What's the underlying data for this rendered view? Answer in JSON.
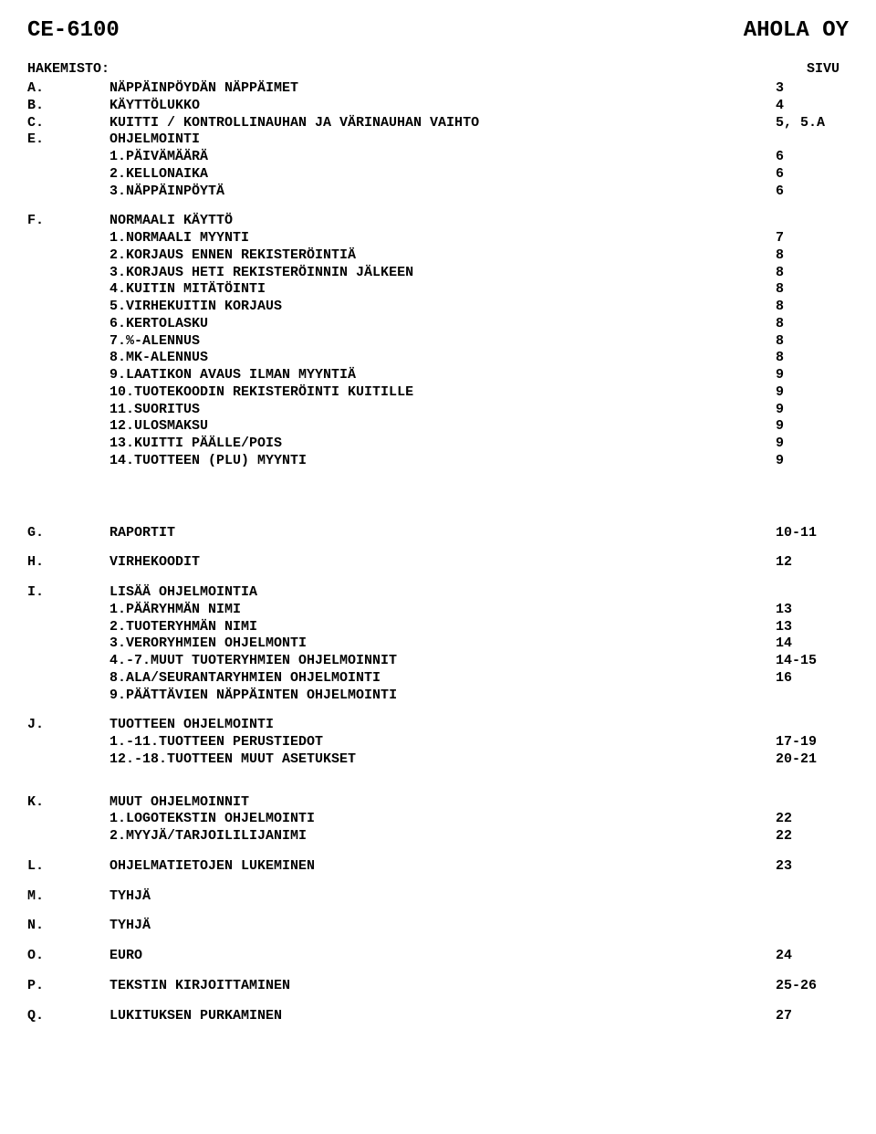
{
  "header": {
    "left": "CE-6100",
    "right": "AHOLA OY"
  },
  "index_head": {
    "label": "HAKEMISTO:",
    "page": "SIVU"
  },
  "rows": [
    {
      "letter": "A.",
      "title": "NÄPPÄINPÖYDÄN NÄPPÄIMET",
      "page": "3"
    },
    {
      "letter": "B.",
      "title": "KÄYTTÖLUKKO",
      "page": "4"
    },
    {
      "letter": "C.",
      "title": "KUITTI / KONTROLLINAUHAN JA VÄRINAUHAN VAIHTO",
      "page": "5, 5.A"
    },
    {
      "letter": "E.",
      "title": "OHJELMOINTI",
      "page": ""
    },
    {
      "sub": true,
      "num": "1.",
      "title": "PÄIVÄMÄÄRÄ",
      "page": "6"
    },
    {
      "sub": true,
      "num": "2.",
      "title": "KELLONAIKA",
      "page": "6"
    },
    {
      "sub": true,
      "num": "3.",
      "title": "NÄPPÄINPÖYTÄ",
      "page": "6"
    },
    {
      "gap": true
    },
    {
      "letter": "F.",
      "title": "NORMAALI KÄYTTÖ",
      "page": ""
    },
    {
      "sub": true,
      "num": "1.",
      "title": "NORMAALI MYYNTI",
      "page": "7"
    },
    {
      "sub": true,
      "num": "2.",
      "title": "KORJAUS ENNEN REKISTERÖINTIÄ",
      "page": "8"
    },
    {
      "sub": true,
      "num": "3.",
      "title": "KORJAUS HETI REKISTERÖINNIN JÄLKEEN",
      "page": "8"
    },
    {
      "sub": true,
      "num": "4.",
      "title": "KUITIN MITÄTÖINTI",
      "page": "8"
    },
    {
      "sub": true,
      "num": "5.",
      "title": "VIRHEKUITIN KORJAUS",
      "page": "8"
    },
    {
      "sub": true,
      "num": "6.",
      "title": "KERTOLASKU",
      "page": "8"
    },
    {
      "sub": true,
      "num": "7.",
      "title": "%-ALENNUS",
      "page": "8"
    },
    {
      "sub": true,
      "num": "8.",
      "title": "MK-ALENNUS",
      "page": "8"
    },
    {
      "sub": true,
      "num": "9.",
      "title": "LAATIKON AVAUS ILMAN MYYNTIÄ",
      "page": "9"
    },
    {
      "sub": true,
      "num": "10.",
      "title": "TUOTEKOODIN REKISTERÖINTI KUITILLE",
      "page": "9"
    },
    {
      "sub": true,
      "num": "11.",
      "title": "SUORITUS",
      "page": "9"
    },
    {
      "sub": true,
      "num": "12.",
      "title": "ULOSMAKSU",
      "page": "9"
    },
    {
      "sub": true,
      "num": "13.",
      "title": "KUITTI PÄÄLLE/POIS",
      "page": "9"
    },
    {
      "sub": true,
      "num": "14.",
      "title": "TUOTTEEN (PLU) MYYNTI",
      "page": "9"
    },
    {
      "biggap": true
    },
    {
      "letter": "G.",
      "title": "RAPORTIT",
      "page": "10-11"
    },
    {
      "gap": true
    },
    {
      "letter": "H.",
      "title": "VIRHEKOODIT",
      "page": "12"
    },
    {
      "gap": true
    },
    {
      "letter": "I.",
      "title": "LISÄÄ OHJELMOINTIA",
      "page": ""
    },
    {
      "sub": true,
      "num": "1.",
      "title": "PÄÄRYHMÄN NIMI",
      "page": "13"
    },
    {
      "sub": true,
      "num": "2.",
      "title": "TUOTERYHMÄN NIMI",
      "page": "13"
    },
    {
      "sub": true,
      "num": "3.",
      "title": "VERORYHMIEN OHJELMONTI",
      "page": "14"
    },
    {
      "sub": true,
      "num": "4.-7.",
      "title": "MUUT TUOTERYHMIEN OHJELMOINNIT",
      "page": "14-15"
    },
    {
      "sub": true,
      "num": "8.",
      "title": "ALA/SEURANTARYHMIEN OHJELMOINTI",
      "page": "16"
    },
    {
      "sub": true,
      "num": "9.",
      "title": "PÄÄTTÄVIEN NÄPPÄINTEN OHJELMOINTI",
      "page": ""
    },
    {
      "gap": true
    },
    {
      "letter": "J.",
      "title": "TUOTTEEN OHJELMOINTI",
      "page": ""
    },
    {
      "sub": true,
      "num": "1.-11.",
      "title": "TUOTTEEN PERUSTIEDOT",
      "page": "17-19"
    },
    {
      "sub": true,
      "num": "12.-18.",
      "title": "TUOTTEEN MUUT ASETUKSET",
      "page": "20-21"
    },
    {
      "gap": true
    },
    {
      "gap": true
    },
    {
      "letter": "K.",
      "title": "MUUT OHJELMOINNIT",
      "page": ""
    },
    {
      "sub": true,
      "num": "1.",
      "title": "LOGOTEKSTIN OHJELMOINTI",
      "page": "22"
    },
    {
      "sub": true,
      "num": "2.",
      "title": "MYYJÄ/TARJOILILIJANIMI",
      "page": "22"
    },
    {
      "gap": true
    },
    {
      "letter": "L.",
      "title": "OHJELMATIETOJEN LUKEMINEN",
      "page": "23"
    },
    {
      "gap": true
    },
    {
      "letter": "M.",
      "title": "TYHJÄ",
      "page": ""
    },
    {
      "gap": true
    },
    {
      "letter": "N.",
      "title": "TYHJÄ",
      "page": ""
    },
    {
      "gap": true
    },
    {
      "letter": "O.",
      "title": "EURO",
      "page": "24"
    },
    {
      "gap": true
    },
    {
      "letter": "P.",
      "title": "TEKSTIN KIRJOITTAMINEN",
      "page": "25-26"
    },
    {
      "gap": true
    },
    {
      "letter": "Q.",
      "title": "LUKITUKSEN PURKAMINEN",
      "page": "27"
    }
  ]
}
